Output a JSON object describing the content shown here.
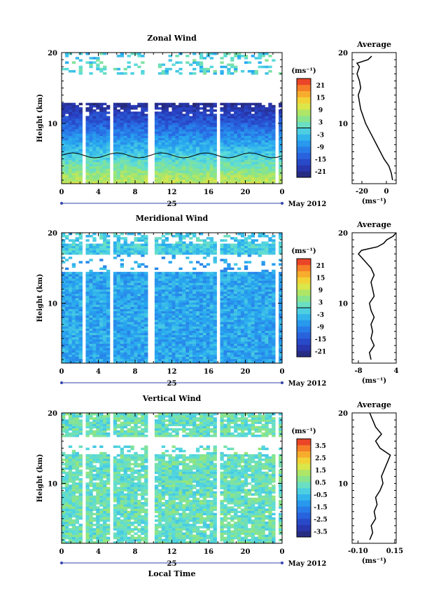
{
  "chart_data": [
    {
      "type": "heatmap",
      "title": "Zonal Wind",
      "ylabel": "Height (km)",
      "ylim": [
        1.5,
        20
      ],
      "xlim": [
        0,
        24
      ],
      "x_ticks": [
        "0",
        "4",
        "8",
        "12",
        "16",
        "20",
        "0"
      ],
      "y_ticks": [
        "10",
        "20"
      ],
      "date_label": "25",
      "month_label": "May 2012",
      "colorbar": {
        "unit": "(ms⁻¹)",
        "ticks": [
          "21",
          "15",
          "9",
          "3",
          "-3",
          "-9",
          "-15",
          "-21"
        ],
        "min": -24,
        "max": 24
      },
      "average": {
        "title": "Average",
        "x_ticks": [
          "-20",
          "0"
        ],
        "xlim": [
          -28,
          8
        ],
        "unit": "(ms⁻¹)",
        "profile": [
          [
            5,
            2
          ],
          [
            4,
            3
          ],
          [
            2,
            4
          ],
          [
            -2,
            5
          ],
          [
            -5,
            6
          ],
          [
            -8,
            7
          ],
          [
            -11,
            8
          ],
          [
            -14,
            9
          ],
          [
            -17,
            10
          ],
          [
            -19,
            11
          ],
          [
            -21,
            12
          ],
          [
            -22,
            13
          ],
          [
            -23,
            14
          ],
          [
            -21,
            15
          ],
          [
            -22,
            16
          ],
          [
            -24,
            17
          ],
          [
            -22,
            18
          ],
          [
            -24,
            18.5
          ],
          [
            -15,
            19
          ],
          [
            -12,
            19.5
          ]
        ]
      }
    },
    {
      "type": "heatmap",
      "title": "Meridional Wind",
      "ylabel": "Height (km)",
      "ylim": [
        1.5,
        20
      ],
      "xlim": [
        0,
        24
      ],
      "x_ticks": [
        "0",
        "4",
        "8",
        "12",
        "16",
        "20",
        "0"
      ],
      "y_ticks": [
        "10",
        "20"
      ],
      "date_label": "25",
      "month_label": "May 2012",
      "colorbar": {
        "unit": "(ms⁻¹)",
        "ticks": [
          "21",
          "15",
          "9",
          "3",
          "-3",
          "-9",
          "-15",
          "-21"
        ],
        "min": -24,
        "max": 24
      },
      "average": {
        "title": "Average",
        "x_ticks": [
          "-8",
          "4"
        ],
        "xlim": [
          -10,
          4
        ],
        "unit": "(ms⁻¹)",
        "profile": [
          [
            -4,
            2
          ],
          [
            -4.5,
            3
          ],
          [
            -3,
            4
          ],
          [
            -4,
            5
          ],
          [
            -3.5,
            6
          ],
          [
            -4,
            7
          ],
          [
            -3,
            8
          ],
          [
            -4,
            9
          ],
          [
            -4.5,
            10
          ],
          [
            -3,
            11
          ],
          [
            -3.5,
            12
          ],
          [
            -4,
            13
          ],
          [
            -3,
            14
          ],
          [
            -4,
            15
          ],
          [
            -6,
            16
          ],
          [
            -8,
            17
          ],
          [
            -7,
            17.5
          ],
          [
            -2,
            18
          ],
          [
            0,
            18.5
          ],
          [
            1,
            19
          ],
          [
            3,
            19.5
          ],
          [
            4,
            20
          ]
        ]
      }
    },
    {
      "type": "heatmap",
      "title": "Vertical Wind",
      "ylabel": "Height (km)",
      "xlabel": "Local Time",
      "ylim": [
        1.5,
        20
      ],
      "xlim": [
        0,
        24
      ],
      "x_ticks": [
        "0",
        "4",
        "8",
        "12",
        "16",
        "20",
        "0"
      ],
      "y_ticks": [
        "10",
        "20"
      ],
      "date_label": "25",
      "month_label": "May 2012",
      "colorbar": {
        "unit": "(ms⁻¹)",
        "ticks": [
          "3.5",
          "2.5",
          "1.5",
          "0.5",
          "-0.5",
          "-1.5",
          "-2.5",
          "-3.5"
        ],
        "min": -4,
        "max": 4
      },
      "average": {
        "title": "Average",
        "x_ticks": [
          "-0.10",
          "0.15"
        ],
        "xlim": [
          -0.14,
          0.16
        ],
        "unit": "(ms⁻¹)",
        "profile": [
          [
            -0.02,
            2
          ],
          [
            0,
            3
          ],
          [
            -0.01,
            4
          ],
          [
            0.02,
            5
          ],
          [
            0.01,
            6
          ],
          [
            0.03,
            7
          ],
          [
            0.02,
            8
          ],
          [
            0.05,
            9
          ],
          [
            0.07,
            10
          ],
          [
            0.06,
            11
          ],
          [
            0.08,
            12
          ],
          [
            0.1,
            13
          ],
          [
            0.12,
            14
          ],
          [
            0.05,
            15
          ],
          [
            0.02,
            16
          ],
          [
            0.06,
            17
          ],
          [
            0.02,
            18
          ],
          [
            0.0,
            19
          ],
          [
            -0.02,
            20
          ]
        ]
      }
    }
  ]
}
